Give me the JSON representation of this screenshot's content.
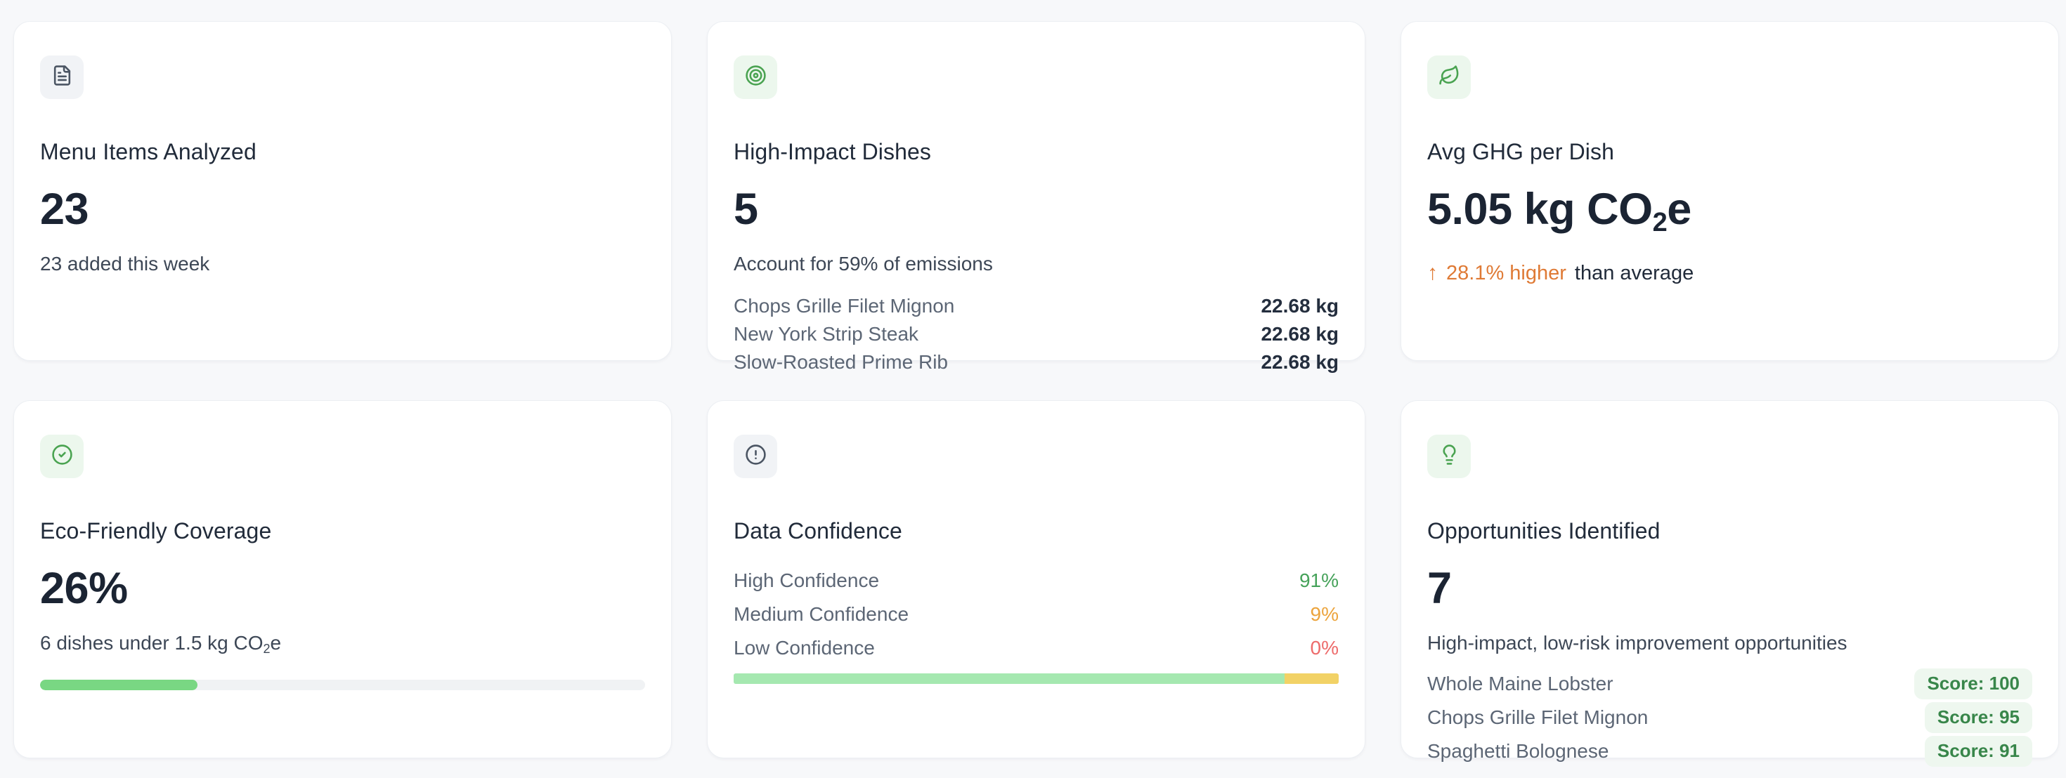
{
  "colors": {
    "page_bg": "#f7f8fa",
    "icon_green": "#4aa351",
    "slate_icon": "#4b5563",
    "tile_green_bg": "#ecf7ed",
    "tile_gray_bg": "#f1f3f6",
    "orange": "#df7a35",
    "pct_green": "#46a25a",
    "amber": "#eca43d",
    "red": "#ed6b6b",
    "progress_green": "#79d783",
    "bar_green": "#a5e8b0",
    "bar_yellow": "#f2d266",
    "badge_bg": "#eef7ef",
    "badge_text": "#38864a"
  },
  "cards": {
    "menu_items": {
      "icon": "file-text-icon",
      "title": "Menu Items Analyzed",
      "value": "23",
      "subtitle": "23 added this week"
    },
    "high_impact": {
      "icon": "target-icon",
      "title": "High-Impact Dishes",
      "value": "5",
      "subtitle": "Account for 59% of emissions",
      "items": [
        {
          "name": "Chops Grille Filet Mignon",
          "value": "22.68 kg"
        },
        {
          "name": "New York Strip Steak",
          "value": "22.68 kg"
        },
        {
          "name": "Slow-Roasted Prime Rib",
          "value": "22.68 kg"
        }
      ]
    },
    "avg_ghg": {
      "icon": "leaf-icon",
      "title": "Avg GHG per Dish",
      "value_main": "5.05 kg CO",
      "value_sub": "2",
      "value_tail": "e",
      "trend_arrow": "↑",
      "trend_highlight": "28.1% higher",
      "trend_rest": "than average"
    },
    "eco_coverage": {
      "icon": "check-circle-icon",
      "title": "Eco-Friendly Coverage",
      "value": "26%",
      "subtitle_main": "6 dishes under 1.5 kg CO",
      "subtitle_sub": "2",
      "subtitle_tail": "e",
      "progress_pct": 26
    },
    "data_confidence": {
      "icon": "alert-circle-icon",
      "title": "Data Confidence",
      "rows": [
        {
          "label": "High Confidence",
          "value": "91%"
        },
        {
          "label": "Medium Confidence",
          "value": "9%"
        },
        {
          "label": "Low Confidence",
          "value": "0%"
        }
      ],
      "bar": {
        "green_pct": 91,
        "yellow_pct": 9
      }
    },
    "opportunities": {
      "icon": "lightbulb-icon",
      "title": "Opportunities Identified",
      "value": "7",
      "subtitle": "High-impact, low-risk improvement opportunities",
      "items": [
        {
          "name": "Whole Maine Lobster",
          "score": "Score: 100"
        },
        {
          "name": "Chops Grille Filet Mignon",
          "score": "Score: 95"
        },
        {
          "name": "Spaghetti Bolognese",
          "score": "Score: 91"
        }
      ]
    }
  }
}
